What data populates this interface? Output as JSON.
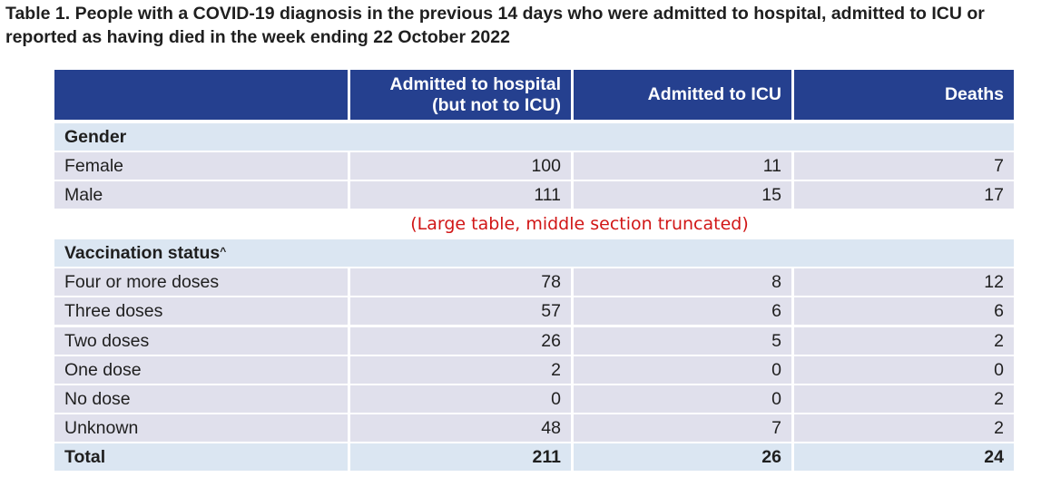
{
  "title": "Table 1. People with a COVID-19 diagnosis in the previous 14 days who were admitted to hospital, admitted to ICU or reported as having died in the week ending 22 October 2022",
  "columns": {
    "c0": "",
    "c1_line1": "Admitted to hospital",
    "c1_line2": "(but not to ICU)",
    "c2": "Admitted to ICU",
    "c3": "Deaths"
  },
  "gender": {
    "label": "Gender",
    "rows": [
      {
        "label": "Female",
        "hospital": "100",
        "icu": "11",
        "deaths": "7"
      },
      {
        "label": "Male",
        "hospital": "111",
        "icu": "15",
        "deaths": "17"
      }
    ]
  },
  "truncation_note": "(Large table, middle section truncated)",
  "vaccination": {
    "label": "Vaccination status",
    "label_sup": "^",
    "rows": [
      {
        "label": "Four or more doses",
        "hospital": "78",
        "icu": "8",
        "deaths": "12"
      },
      {
        "label": "Three doses",
        "hospital": "57",
        "icu": "6",
        "deaths": "6"
      },
      {
        "label": "Two doses",
        "hospital": "26",
        "icu": "5",
        "deaths": "2"
      },
      {
        "label": "One dose",
        "hospital": "2",
        "icu": "0",
        "deaths": "0"
      },
      {
        "label": "No dose",
        "hospital": "0",
        "icu": "0",
        "deaths": "2"
      },
      {
        "label": "Unknown",
        "hospital": "48",
        "icu": "7",
        "deaths": "2"
      }
    ]
  },
  "total": {
    "label": "Total",
    "hospital": "211",
    "icu": "26",
    "deaths": "24"
  },
  "colors": {
    "header_bg": "#25408f",
    "data_row_bg": "#e0e0ec",
    "section_row_bg": "#dbe6f2",
    "note_text": "#d11616"
  }
}
